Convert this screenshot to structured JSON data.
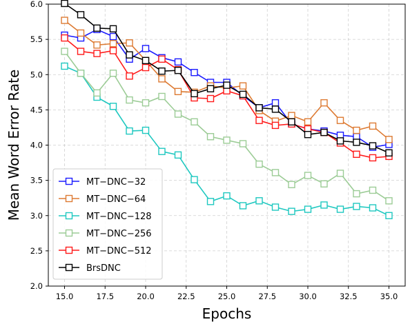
{
  "chart_data": {
    "type": "line",
    "xlabel": "Epochs",
    "ylabel": "Mean Word Error Rate",
    "xlim": [
      14.0,
      36.0
    ],
    "ylim": [
      2.0,
      6.0
    ],
    "xticks": [
      "15.0",
      "17.5",
      "20.0",
      "22.5",
      "25.0",
      "27.5",
      "30.0",
      "32.5",
      "35.0"
    ],
    "yticks": [
      "2.0",
      "2.5",
      "3.0",
      "3.5",
      "4.0",
      "4.5",
      "5.0",
      "5.5",
      "6.0"
    ],
    "grid": true,
    "legend_position": "bottom-left",
    "marker": "open-square",
    "x": [
      15,
      16,
      17,
      18,
      19,
      20,
      21,
      22,
      23,
      24,
      25,
      26,
      27,
      28,
      29,
      30,
      31,
      32,
      33,
      34,
      35
    ],
    "series": [
      {
        "name": "MT−DNC−32",
        "color": "#1a1aff",
        "values": [
          5.56,
          5.52,
          5.64,
          5.54,
          5.22,
          5.37,
          5.24,
          5.18,
          5.03,
          4.89,
          4.89,
          4.7,
          4.53,
          4.6,
          4.3,
          4.23,
          4.2,
          4.14,
          4.12,
          3.97,
          4.01
        ]
      },
      {
        "name": "MT−DNC−64",
        "color": "#dd7a32",
        "values": [
          5.77,
          5.59,
          5.42,
          5.44,
          5.45,
          5.2,
          4.94,
          4.76,
          4.75,
          4.84,
          4.81,
          4.84,
          4.49,
          4.34,
          4.42,
          4.33,
          4.6,
          4.35,
          4.21,
          4.27,
          4.08
        ]
      },
      {
        "name": "MT−DNC−128",
        "color": "#1ec8c0",
        "values": [
          5.12,
          5.02,
          4.68,
          4.55,
          4.2,
          4.21,
          3.91,
          3.86,
          3.51,
          3.2,
          3.28,
          3.14,
          3.21,
          3.12,
          3.06,
          3.09,
          3.15,
          3.09,
          3.13,
          3.11,
          3.0
        ]
      },
      {
        "name": "MT−DNC−256",
        "color": "#9ccc96",
        "values": [
          5.33,
          5.02,
          4.74,
          5.02,
          4.64,
          4.6,
          4.69,
          4.44,
          4.33,
          4.12,
          4.07,
          4.02,
          3.73,
          3.61,
          3.44,
          3.57,
          3.45,
          3.6,
          3.31,
          3.36,
          3.21
        ]
      },
      {
        "name": "MT−DNC−512",
        "color": "#ff1a1a",
        "values": [
          5.52,
          5.33,
          5.3,
          5.34,
          4.98,
          5.1,
          5.22,
          5.07,
          4.67,
          4.66,
          4.77,
          4.7,
          4.35,
          4.28,
          4.3,
          4.23,
          4.18,
          4.03,
          3.87,
          3.82,
          3.84
        ]
      },
      {
        "name": "BrsDNC",
        "color": "#000000",
        "values": [
          6.01,
          5.85,
          5.66,
          5.65,
          5.28,
          5.2,
          5.05,
          5.06,
          4.73,
          4.8,
          4.85,
          4.72,
          4.53,
          4.51,
          4.33,
          4.15,
          4.18,
          4.06,
          4.04,
          3.99,
          3.89
        ]
      }
    ]
  }
}
